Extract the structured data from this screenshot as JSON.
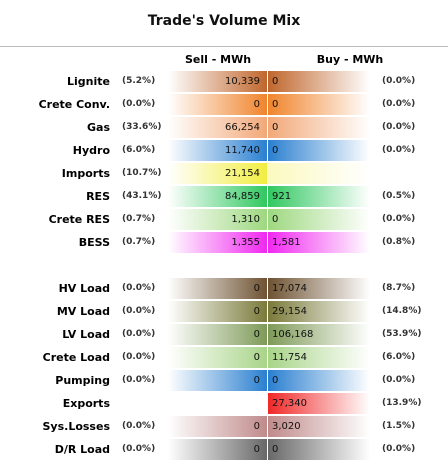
{
  "title": "Trade's Volume Mix",
  "columns": {
    "sell": "Sell - MWh",
    "buy": "Buy - MWh"
  },
  "rows": [
    [
      "Lignite",
      "(5.2%)",
      "10,339",
      "0",
      "(0.0%)"
    ],
    [
      "Crete Conv.",
      "(0.0%)",
      "0",
      "0",
      "(0.0%)"
    ],
    [
      "Gas",
      "(33.6%)",
      "66,254",
      "0",
      "(0.0%)"
    ],
    [
      "Hydro",
      "(6.0%)",
      "11,740",
      "0",
      "(0.0%)"
    ],
    [
      "Imports",
      "(10.7%)",
      "21,154",
      null,
      null
    ],
    [
      "RES",
      "(43.1%)",
      "84,859",
      "921",
      "(0.5%)"
    ],
    [
      "Crete RES",
      "(0.7%)",
      "1,310",
      "0",
      "(0.0%)"
    ],
    [
      "BESS",
      "(0.7%)",
      "1,355",
      "1,581",
      "(0.8%)"
    ],
    [
      "HV Load",
      "(0.0%)",
      "0",
      "17,074",
      "(8.7%)"
    ],
    [
      "MV Load",
      "(0.0%)",
      "0",
      "29,154",
      "(14.8%)"
    ],
    [
      "LV Load",
      "(0.0%)",
      "0",
      "106,168",
      "(53.9%)"
    ],
    [
      "Crete Load",
      "(0.0%)",
      "0",
      "11,754",
      "(6.0%)"
    ],
    [
      "Pumping",
      "(0.0%)",
      "0",
      "0",
      "(0.0%)"
    ],
    [
      "Exports",
      null,
      null,
      "27,340",
      "(13.9%)"
    ],
    [
      "Sys.Losses",
      "(0.0%)",
      "0",
      "3,020",
      "(1.5%)"
    ],
    [
      "D/R Load",
      "(0.0%)",
      "0",
      "0",
      "(0.0%)"
    ]
  ]
}
